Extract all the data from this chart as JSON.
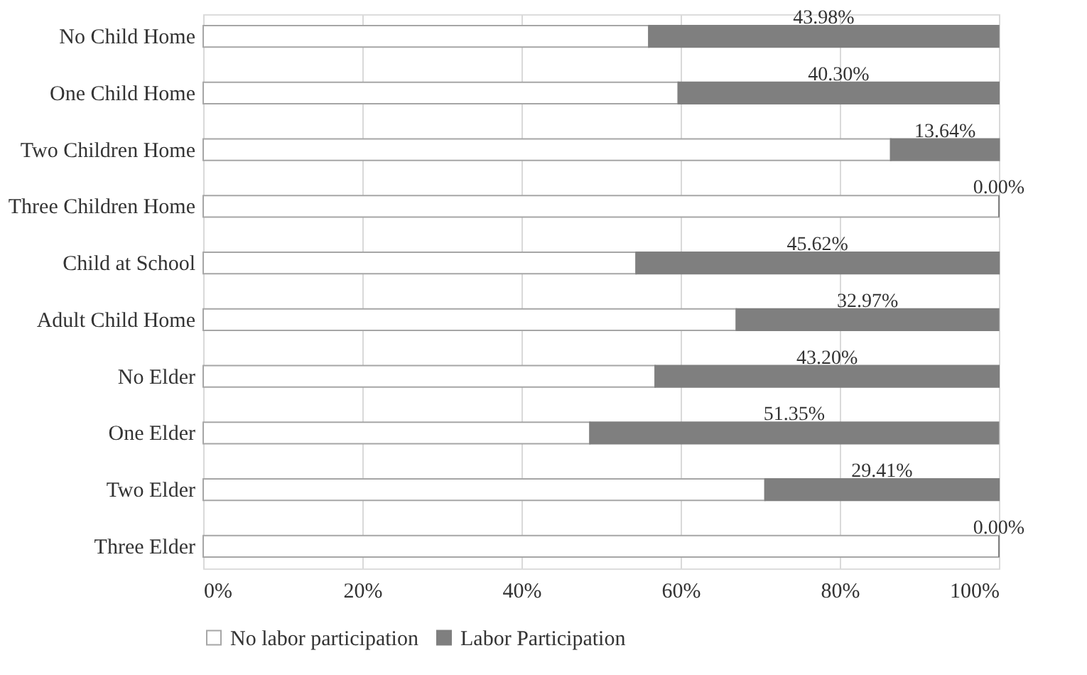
{
  "chart_data": {
    "type": "bar",
    "orientation": "horizontal",
    "stacked": true,
    "categories": [
      "No Child Home",
      "One Child Home",
      "Two Children Home",
      "Three Children Home",
      "Child at School",
      "Adult Child Home",
      "No Elder",
      "One Elder",
      "Two Elder",
      "Three Elder"
    ],
    "series": [
      {
        "name": "No labor participation",
        "color": "#ffffff",
        "values": [
          56,
          59.7,
          86.4,
          100,
          54.4,
          67,
          56.8,
          48.6,
          70.6,
          100
        ]
      },
      {
        "name": "Labor Participation",
        "color": "#7f7f7f",
        "values": [
          43.98,
          40.3,
          13.64,
          0,
          45.62,
          32.97,
          43.2,
          51.35,
          29.41,
          0
        ],
        "value_labels": [
          "43.98%",
          "40.30%",
          "13.64%",
          "0.00%",
          "45.62%",
          "32.97%",
          "43.20%",
          "51.35%",
          "29.41%",
          "0.00%"
        ]
      }
    ],
    "xlim": [
      0,
      100
    ],
    "xticks": [
      {
        "value": 0,
        "label": "0%"
      },
      {
        "value": 20,
        "label": "20%"
      },
      {
        "value": 40,
        "label": "40%"
      },
      {
        "value": 60,
        "label": "60%"
      },
      {
        "value": 80,
        "label": "80%"
      },
      {
        "value": 100,
        "label": "100%"
      }
    ],
    "grid": "x",
    "legend": "bottom"
  }
}
